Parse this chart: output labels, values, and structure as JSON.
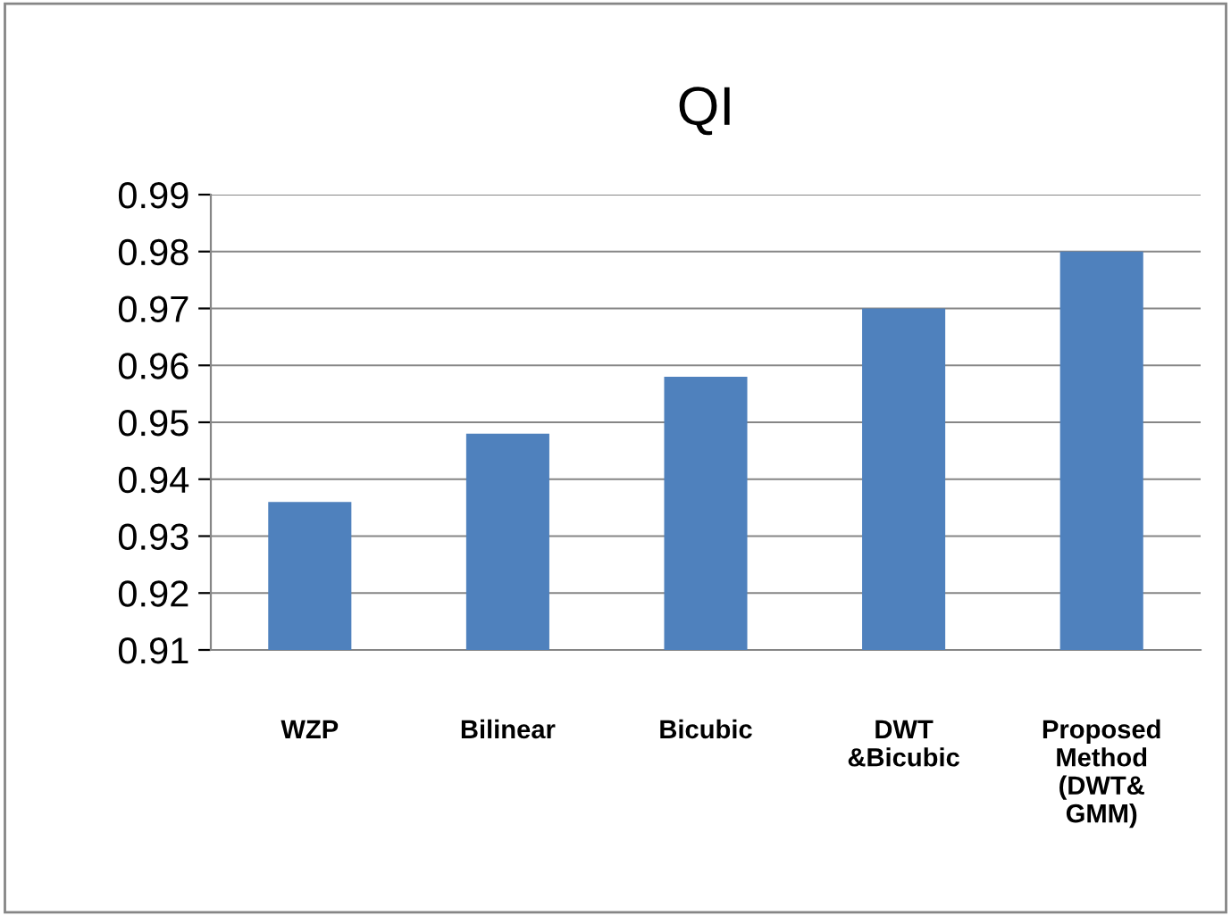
{
  "chart_data": {
    "type": "bar",
    "title": "QI",
    "categories": [
      "WZP",
      "Bilinear",
      "Bicubic",
      "DWT\n&Bicubic",
      "Proposed\nMethod\n(DWT&\nGMM)"
    ],
    "values": [
      0.936,
      0.948,
      0.958,
      0.97,
      0.98
    ],
    "color": "#4f81bd",
    "ylim": [
      0.91,
      0.99
    ],
    "yticks": [
      0.91,
      0.92,
      0.93,
      0.94,
      0.95,
      0.96,
      0.97,
      0.98,
      0.99
    ],
    "grid": "y",
    "legend": false
  }
}
